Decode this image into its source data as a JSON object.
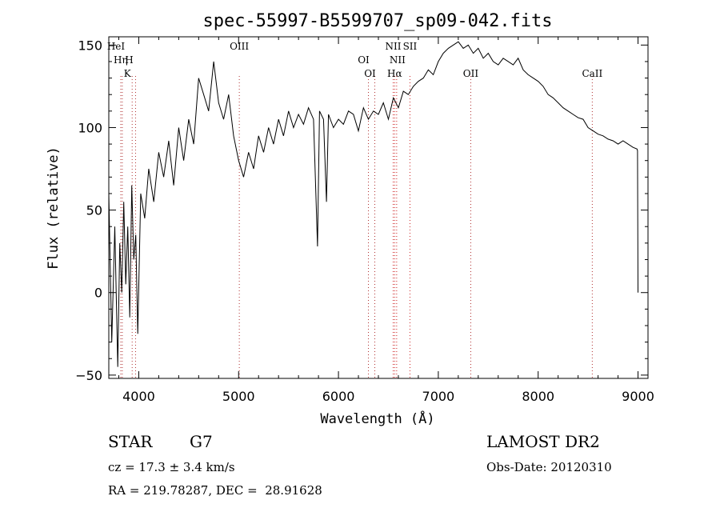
{
  "chart_data": {
    "type": "line",
    "title": "spec-55997-B5599707_sp09-042.fits",
    "xlabel": "Wavelength (Å)",
    "ylabel": "Flux (relative)",
    "xlim": [
      3700,
      9100
    ],
    "ylim": [
      -52,
      155
    ],
    "x_ticks": [
      4000,
      5000,
      6000,
      7000,
      8000,
      9000
    ],
    "x_tick_labels": [
      "4000",
      "5000",
      "6000",
      "7000",
      "8000",
      "9000"
    ],
    "y_ticks": [
      -50,
      0,
      50,
      100,
      150
    ],
    "y_tick_labels": [
      "−50",
      "0",
      "50",
      "100",
      "150"
    ],
    "grid": false,
    "series": [
      {
        "x": [
          3700,
          3730,
          3760,
          3790,
          3810,
          3830,
          3850,
          3870,
          3890,
          3910,
          3930,
          3950,
          3970,
          3990,
          4020,
          4060,
          4100,
          4150,
          4200,
          4250,
          4300,
          4350,
          4400,
          4450,
          4500,
          4550,
          4600,
          4650,
          4700,
          4750,
          4800,
          4850,
          4900,
          4950,
          5000,
          5050,
          5100,
          5150,
          5200,
          5250,
          5300,
          5350,
          5400,
          5450,
          5500,
          5550,
          5600,
          5650,
          5700,
          5750,
          5790,
          5810,
          5850,
          5880,
          5900,
          5950,
          6000,
          6050,
          6100,
          6150,
          6200,
          6250,
          6300,
          6350,
          6400,
          6450,
          6500,
          6550,
          6600,
          6650,
          6700,
          6750,
          6800,
          6850,
          6900,
          6950,
          7000,
          7050,
          7100,
          7150,
          7200,
          7250,
          7300,
          7350,
          7400,
          7450,
          7500,
          7550,
          7600,
          7650,
          7700,
          7750,
          7800,
          7850,
          7900,
          7950,
          8000,
          8050,
          8100,
          8150,
          8200,
          8250,
          8300,
          8350,
          8400,
          8450,
          8500,
          8550,
          8600,
          8650,
          8700,
          8750,
          8800,
          8850,
          8900,
          8950,
          8990,
          8995,
          9000
        ],
        "y": [
          60,
          -30,
          40,
          -45,
          30,
          0,
          55,
          5,
          40,
          -15,
          65,
          20,
          35,
          -25,
          60,
          45,
          75,
          55,
          85,
          70,
          92,
          65,
          100,
          80,
          105,
          90,
          130,
          120,
          110,
          140,
          115,
          105,
          120,
          95,
          80,
          70,
          85,
          75,
          95,
          85,
          100,
          90,
          105,
          95,
          110,
          100,
          108,
          102,
          112,
          105,
          28,
          110,
          105,
          55,
          108,
          100,
          105,
          102,
          110,
          108,
          98,
          112,
          105,
          110,
          108,
          115,
          105,
          118,
          112,
          122,
          120,
          125,
          128,
          130,
          135,
          132,
          140,
          145,
          148,
          150,
          152,
          148,
          150,
          145,
          148,
          142,
          145,
          140,
          138,
          142,
          140,
          138,
          142,
          135,
          132,
          130,
          128,
          125,
          120,
          118,
          115,
          112,
          110,
          108,
          106,
          105,
          100,
          98,
          96,
          95,
          93,
          92,
          90,
          92,
          90,
          88,
          87,
          86,
          0
        ]
      }
    ],
    "lines": [
      {
        "label": "HeI",
        "x": 3820
      },
      {
        "label": "Hη",
        "x": 3835
      },
      {
        "label": "H",
        "x": 3968
      },
      {
        "label": "K",
        "x": 3934
      },
      {
        "label": "OIII",
        "x": 5007
      },
      {
        "label": "OI",
        "x": 6300
      },
      {
        "label": "OI",
        "x": 6364
      },
      {
        "label": "NII",
        "x": 6548
      },
      {
        "label": "Hα",
        "x": 6563
      },
      {
        "label": "NII",
        "x": 6583
      },
      {
        "label": "SII",
        "x": 6716
      },
      {
        "label": "OII",
        "x": 7325
      },
      {
        "label": "CaII",
        "x": 8542
      }
    ]
  },
  "info": {
    "object_class": "STAR",
    "subclass": "G7",
    "survey": "LAMOST DR2",
    "cz": "cz = 17.3 ± 3.4 km/s",
    "obs_date": "Obs-Date: 20120310",
    "coords": "RA = 219.78287, DEC =  28.91628"
  }
}
